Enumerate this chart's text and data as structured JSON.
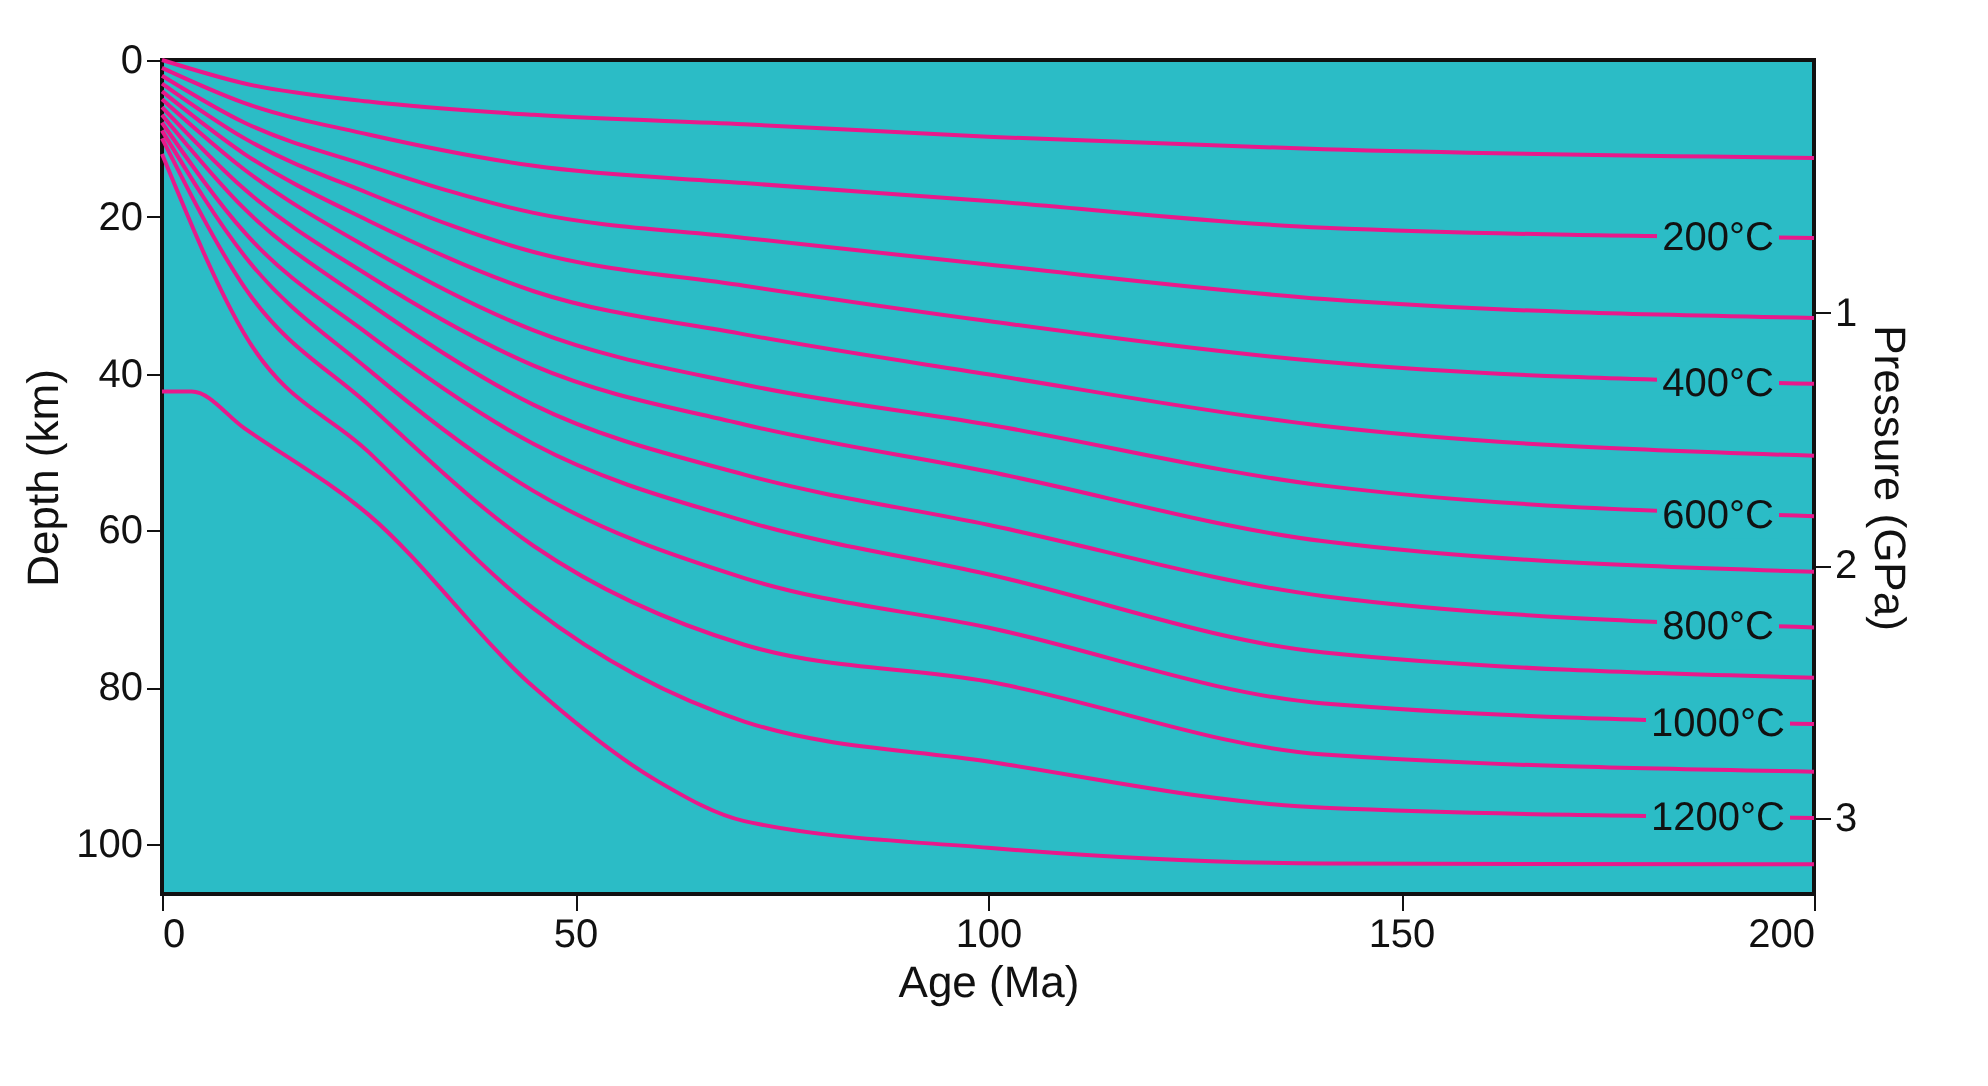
{
  "chart_data": {
    "type": "line",
    "xlabel": "Age (Ma)",
    "ylabel": "Depth (km)",
    "y2label": "Pressure (GPa)",
    "xlim": [
      0,
      200
    ],
    "xticks": [
      0,
      50,
      100,
      150,
      200
    ],
    "ylim": [
      106.4,
      0
    ],
    "yticks": [
      0,
      20,
      40,
      60,
      80,
      100
    ],
    "y2lim": [
      3.3,
      0
    ],
    "y2ticks": [
      1,
      2,
      3
    ],
    "grid": false,
    "legend": false,
    "marker": "none",
    "line_style": "solid",
    "series": [
      {
        "color": "#e8198b",
        "x": [
          0,
          10,
          25,
          45,
          70.5,
          100,
          140.7,
          200
        ],
        "values": [
          0,
          3,
          5.3,
          7,
          8.2,
          9.8,
          11.4,
          12.5
        ]
      },
      {
        "name": "200°C",
        "color": "#e8198b",
        "x": [
          0,
          10,
          25,
          45,
          70.5,
          100,
          140.7,
          200
        ],
        "values": [
          1,
          5.5,
          9.5,
          13.5,
          15.7,
          18.0,
          21.4,
          22.7
        ]
      },
      {
        "color": "#e8198b",
        "x": [
          0,
          10,
          25,
          45,
          70.5,
          100,
          140.7,
          200
        ],
        "values": [
          2,
          8,
          13.5,
          19.5,
          22.7,
          26.1,
          30.5,
          32.9
        ]
      },
      {
        "name": "400°C",
        "color": "#e8198b",
        "x": [
          0,
          10,
          25,
          45,
          70.5,
          100,
          140.7,
          200
        ],
        "values": [
          3,
          10,
          17,
          24.5,
          28.8,
          33.3,
          38.5,
          41.3
        ]
      },
      {
        "color": "#e8198b",
        "x": [
          0,
          10,
          25,
          45,
          70.5,
          100,
          140.7,
          200
        ],
        "values": [
          4,
          12,
          20.5,
          29.5,
          35.0,
          40.1,
          46.7,
          50.5
        ]
      },
      {
        "name": "600°C",
        "color": "#e8198b",
        "x": [
          0,
          10,
          25,
          45,
          70.5,
          100,
          140.7,
          200
        ],
        "values": [
          5,
          14,
          24,
          34.5,
          41.4,
          46.5,
          54.3,
          58.2
        ]
      },
      {
        "color": "#e8198b",
        "x": [
          0,
          10,
          25,
          45,
          70.5,
          100,
          140.7,
          200
        ],
        "values": [
          6,
          16.5,
          27.5,
          39,
          46.5,
          52.5,
          61.4,
          65.3
        ]
      },
      {
        "name": "800°C",
        "color": "#e8198b",
        "x": [
          0,
          10,
          25,
          45,
          70.5,
          100,
          140.7,
          200
        ],
        "values": [
          7,
          19,
          31,
          44,
          52.9,
          59.3,
          68.4,
          72.4
        ]
      },
      {
        "color": "#e8198b",
        "x": [
          0,
          10,
          25,
          45,
          70.5,
          100,
          140.7,
          200
        ],
        "values": [
          8,
          22,
          35,
          49,
          58.8,
          65.6,
          75.6,
          78.8
        ]
      },
      {
        "name": "1000°C",
        "color": "#e8198b",
        "x": [
          0,
          10,
          25,
          45,
          70.5,
          100,
          140.7,
          200
        ],
        "values": [
          9,
          25,
          39.5,
          55,
          66.1,
          72.4,
          82.1,
          84.7
        ]
      },
      {
        "color": "#e8198b",
        "x": [
          0,
          10,
          25,
          45,
          70.5,
          100,
          140.7,
          200
        ],
        "values": [
          10,
          29,
          44,
          62,
          74.6,
          79.3,
          88.6,
          90.8
        ]
      },
      {
        "name": "1200°C",
        "color": "#e8198b",
        "x": [
          0,
          10,
          25,
          45,
          70.5,
          100,
          140.7,
          200
        ],
        "values": [
          12,
          35,
          50,
          70,
          84.4,
          89.5,
          95.4,
          96.7
        ]
      },
      {
        "color": "#e8198b",
        "x": [
          0,
          3.6,
          10,
          25,
          45,
          60,
          70.5,
          100,
          140.7,
          200
        ],
        "values": [
          42.3,
          42.3,
          47,
          58,
          80,
          92,
          97.1,
          100.5,
          102.5,
          102.6
        ]
      }
    ]
  }
}
